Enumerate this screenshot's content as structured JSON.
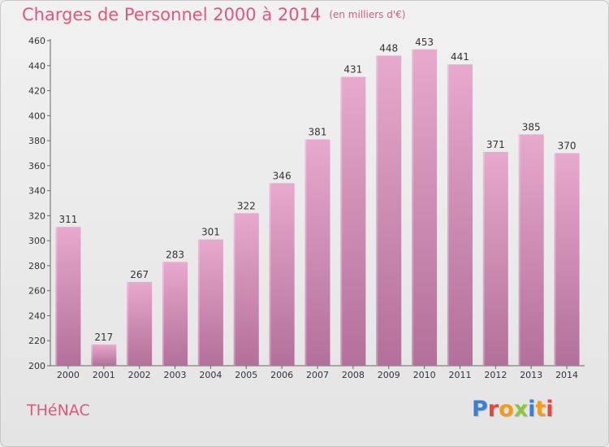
{
  "header": {
    "title": "Charges de Personnel 2000 à 2014",
    "unit": "(en milliers d'€)"
  },
  "footer": {
    "commune": "THéNAC",
    "logo": "Proxiti",
    "logo_colors": [
      "#3a7fd5",
      "#e8453c",
      "#f29b1d",
      "#8cc63f",
      "#3a7fd5",
      "#f29b1d",
      "#e8453c"
    ]
  },
  "colors": {
    "title": "#e0587c",
    "bar_top": "#e7a9cc",
    "bar_bottom": "#b3709a"
  },
  "chart_data": {
    "type": "bar",
    "title": "Charges de Personnel 2000 à 2014",
    "categories": [
      "2000",
      "2001",
      "2002",
      "2003",
      "2004",
      "2005",
      "2006",
      "2007",
      "2008",
      "2009",
      "2010",
      "2011",
      "2012",
      "2013",
      "2014"
    ],
    "values": [
      311,
      217,
      267,
      283,
      301,
      322,
      346,
      381,
      431,
      448,
      453,
      441,
      371,
      385,
      370
    ],
    "ylim": [
      200,
      460
    ],
    "yticks": [
      200,
      220,
      240,
      260,
      280,
      300,
      320,
      340,
      360,
      380,
      400,
      420,
      440,
      460
    ],
    "grid": false,
    "data_labels": true
  }
}
